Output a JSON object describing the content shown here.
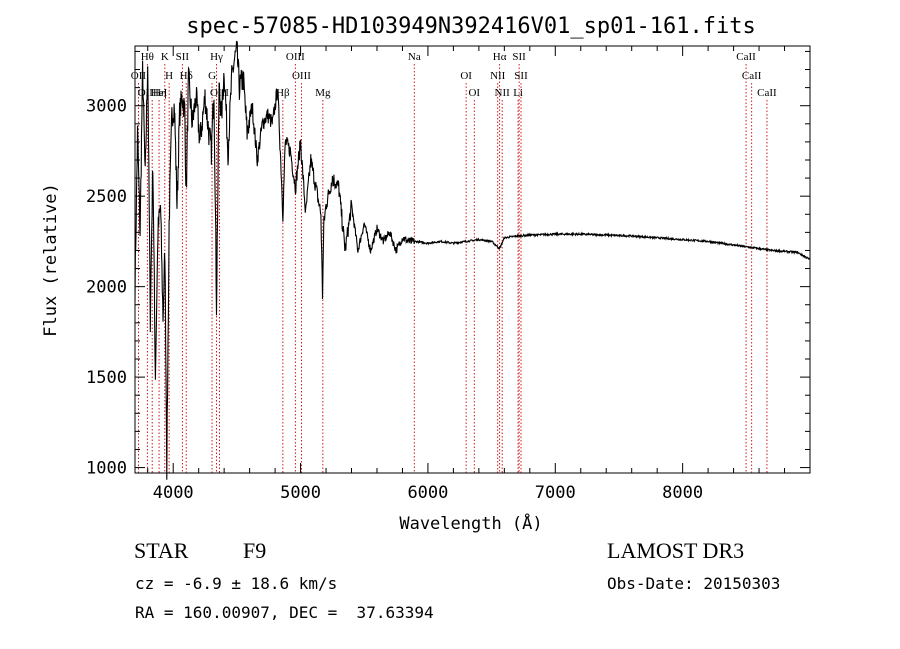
{
  "chart_data": {
    "type": "line",
    "title": "spec-57085-HD103949N392416V01_sp01-161.fits",
    "xlabel": "Wavelength (Å)",
    "ylabel": "Flux (relative)",
    "xlim": [
      3700,
      9000
    ],
    "ylim": [
      970,
      3330
    ],
    "xticks": [
      4000,
      5000,
      6000,
      7000,
      8000
    ],
    "yticks": [
      1000,
      1500,
      2000,
      2500,
      3000
    ],
    "series": [
      {
        "name": "flux",
        "x": [
          3700,
          3720,
          3740,
          3760,
          3780,
          3800,
          3820,
          3840,
          3860,
          3880,
          3900,
          3920,
          3935,
          3950,
          3968,
          3990,
          4010,
          4030,
          4050,
          4070,
          4090,
          4102,
          4120,
          4150,
          4180,
          4210,
          4250,
          4280,
          4300,
          4320,
          4340,
          4360,
          4380,
          4400,
          4430,
          4460,
          4480,
          4500,
          4520,
          4550,
          4580,
          4620,
          4660,
          4700,
          4740,
          4780,
          4820,
          4850,
          4861,
          4880,
          4920,
          4960,
          5000,
          5040,
          5080,
          5120,
          5160,
          5172,
          5183,
          5200,
          5250,
          5300,
          5350,
          5400,
          5450,
          5500,
          5550,
          5600,
          5650,
          5700,
          5750,
          5800,
          5850,
          5900,
          6000,
          6100,
          6200,
          6300,
          6400,
          6500,
          6563,
          6600,
          6700,
          6800,
          7000,
          7200,
          7400,
          7600,
          7800,
          8000,
          8200,
          8400,
          8500,
          8600,
          8700,
          8800,
          8900,
          9000
        ],
        "y": [
          2000,
          2850,
          2300,
          3200,
          2600,
          3250,
          1820,
          2700,
          1500,
          2300,
          2450,
          1830,
          2200,
          1000,
          2350,
          2950,
          3000,
          2450,
          2950,
          3050,
          2980,
          2500,
          3150,
          2900,
          3050,
          2800,
          3050,
          2850,
          2750,
          3100,
          1900,
          3100,
          2950,
          3200,
          2750,
          3150,
          3250,
          3300,
          3100,
          3150,
          2850,
          3000,
          2700,
          2900,
          2950,
          2900,
          3100,
          2600,
          2400,
          2800,
          2750,
          2550,
          2800,
          2400,
          2700,
          2550,
          2400,
          1950,
          2350,
          2450,
          2600,
          2550,
          2200,
          2450,
          2200,
          2350,
          2200,
          2320,
          2250,
          2300,
          2200,
          2270,
          2250,
          2250,
          2240,
          2250,
          2240,
          2250,
          2260,
          2250,
          2210,
          2270,
          2280,
          2285,
          2290,
          2290,
          2285,
          2280,
          2270,
          2260,
          2250,
          2230,
          2220,
          2210,
          2200,
          2195,
          2190,
          2150
        ]
      }
    ],
    "lines": [
      {
        "name": "H8",
        "label": "Hθ",
        "x": 3797
      },
      {
        "name": "OII",
        "label": "OII",
        "x": 3727
      },
      {
        "name": "Hη",
        "label": "OIIHη",
        "x": 3835
      },
      {
        "name": "K",
        "label": "K",
        "x": 3934
      },
      {
        "name": "H",
        "label": "H",
        "x": 3968
      },
      {
        "name": "HeI",
        "label": "HeI",
        "x": 3889
      },
      {
        "name": "SII",
        "label": "SII",
        "x": 4072
      },
      {
        "name": "Hδ",
        "label": "Hδ",
        "x": 4102
      },
      {
        "name": "OIII-4363",
        "label": "OIII",
        "x": 4363
      },
      {
        "name": "Hγ",
        "label": "Hγ",
        "x": 4340
      },
      {
        "name": "G",
        "label": "G",
        "x": 4305
      },
      {
        "name": "Hβ",
        "label": "Hβ",
        "x": 4861
      },
      {
        "name": "OIII-4959",
        "label": "OIII",
        "x": 4959
      },
      {
        "name": "OIII-5007",
        "label": "OIII",
        "x": 5007
      },
      {
        "name": "Mg",
        "label": "Mg",
        "x": 5175
      },
      {
        "name": "Na",
        "label": "Na",
        "x": 5893
      },
      {
        "name": "OI-6300",
        "label": "OI",
        "x": 6300
      },
      {
        "name": "OI-6364",
        "label": "OI",
        "x": 6364
      },
      {
        "name": "Hα",
        "label": "Hα",
        "x": 6563
      },
      {
        "name": "NII-6548",
        "label": "NII",
        "x": 6548
      },
      {
        "name": "NII-6583",
        "label": "NII",
        "x": 6583
      },
      {
        "name": "SII-6716",
        "label": "SII",
        "x": 6716
      },
      {
        "name": "SII-6731",
        "label": "SII",
        "x": 6731
      },
      {
        "name": "Li",
        "label": "Li",
        "x": 6708
      },
      {
        "name": "CaII-8498",
        "label": "CaII",
        "x": 8498
      },
      {
        "name": "CaII-8542",
        "label": "CaII",
        "x": 8542
      },
      {
        "name": "CaII-8662",
        "label": "CaII",
        "x": 8662
      }
    ]
  },
  "info": {
    "class": "STAR",
    "subclass": "F9",
    "survey": "LAMOST DR3",
    "cz": "cz = -6.9 ± 18.6 km/s",
    "obs_date": "Obs-Date: 20150303",
    "radec": "RA = 160.00907, DEC =  37.63394"
  },
  "colors": {
    "axis": "#000000",
    "line": "#000000",
    "marker": "#cc0000"
  }
}
